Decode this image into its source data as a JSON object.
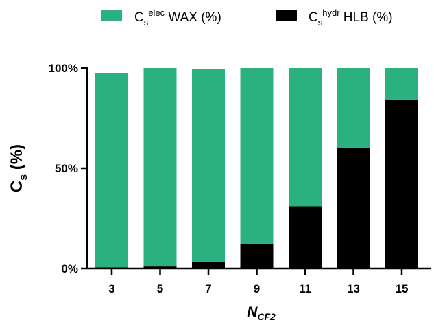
{
  "chart_data": {
    "type": "bar",
    "stacked": true,
    "categories": [
      "3",
      "5",
      "7",
      "9",
      "11",
      "13",
      "15"
    ],
    "series": [
      {
        "name": "Cs hydr HLB (%)",
        "color": "#000000",
        "values": [
          0.5,
          1,
          3.5,
          12,
          31,
          60,
          84
        ]
      },
      {
        "name": "Cs elec WAX (%)",
        "color": "#2bb07f",
        "values": [
          97,
          99,
          96,
          88,
          69,
          40,
          16
        ]
      }
    ],
    "ylim": [
      0,
      100
    ],
    "yticks": [
      "0%",
      "50%",
      "100%"
    ],
    "grid": false,
    "legend_position": "top"
  },
  "legend": {
    "wax": {
      "main": "C",
      "sub": "s",
      "sup": "elec",
      "rest": " WAX (%)"
    },
    "hlb": {
      "main": "C",
      "sub": "s",
      "sup": "hydr",
      "rest": " HLB (%)"
    }
  },
  "axes": {
    "ylabel": {
      "main": "C",
      "sub": "s",
      "rest": " (%)"
    },
    "xlabel": {
      "main": "N",
      "sub": "CF2"
    }
  }
}
